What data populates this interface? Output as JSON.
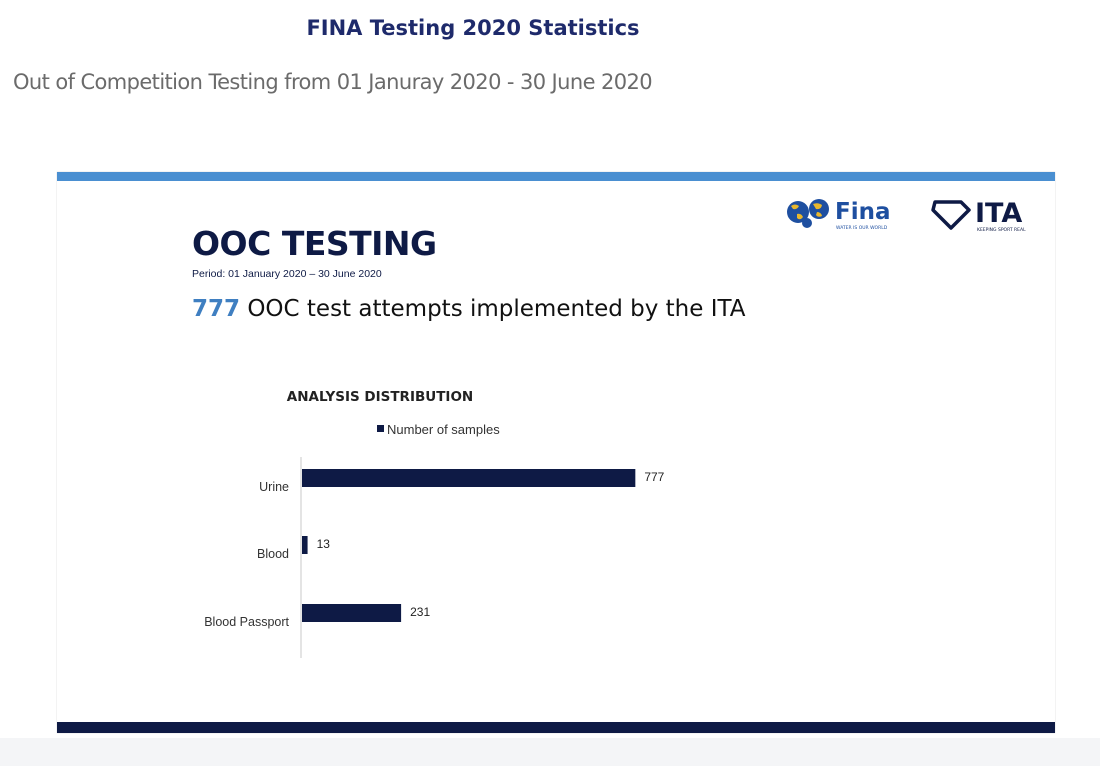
{
  "page": {
    "title": "FINA Testing 2020 Statistics",
    "subtitle": "Out of Competition Testing from 01 Januray 2020 - 30 June 2020"
  },
  "slide": {
    "heading": "OOC TESTING",
    "period": "Period: 01 January 2020 – 30 June 2020",
    "headline_count": "777",
    "headline_text": " OOC test attempts implemented by the ITA",
    "logos": {
      "fina": "Fina",
      "fina_tagline": "WATER IS OUR WORLD",
      "ita": "ITA",
      "ita_tagline": "KEEPING SPORT REAL"
    },
    "colors": {
      "top_bar": "#4a8fd1",
      "bottom_bar": "#0e1a45",
      "accent": "#3f7fc1",
      "bar": "#0e1a45"
    }
  },
  "chart_data": {
    "type": "bar",
    "orientation": "horizontal",
    "title": "ANALYSIS DISTRIBUTION",
    "categories": [
      "Urine",
      "Blood",
      "Blood Passport"
    ],
    "series": [
      {
        "name": "Number of samples",
        "values": [
          777,
          13,
          231
        ]
      }
    ],
    "xlabel": "",
    "ylabel": "",
    "xlim": [
      0,
      1000
    ],
    "grid": false,
    "legend": "top"
  }
}
